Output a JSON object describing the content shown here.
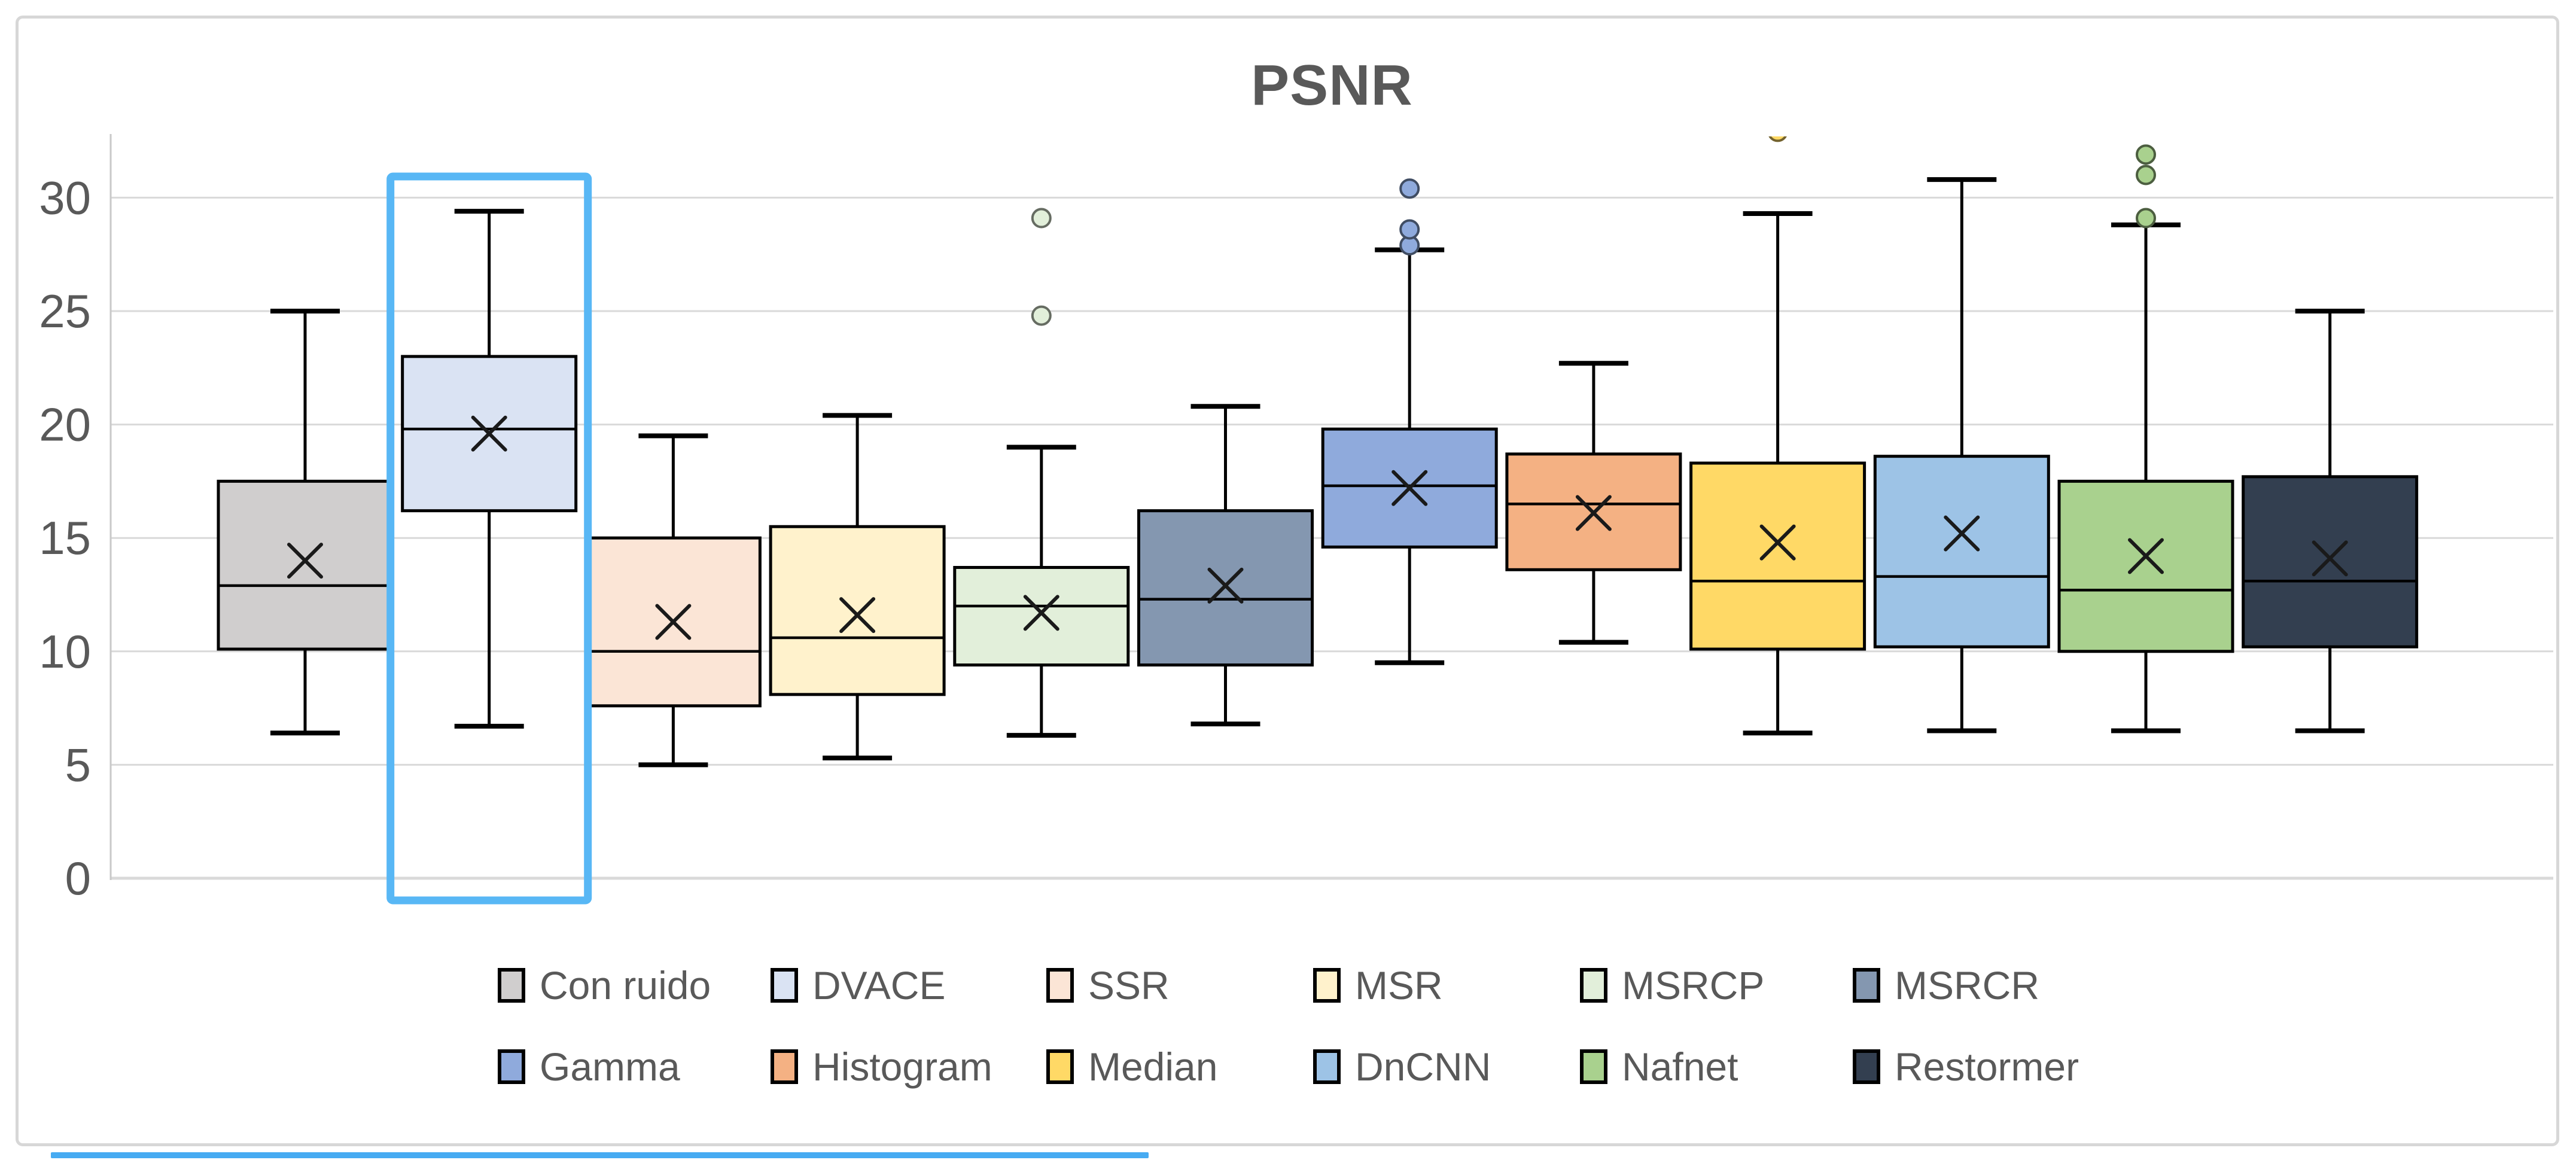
{
  "chart_data": {
    "type": "boxplot",
    "title": "PSNR",
    "y_axis": {
      "ticks": [
        0,
        5,
        10,
        15,
        20,
        25,
        30
      ],
      "min": 0,
      "max_visible": 32.7,
      "gridlines": true
    },
    "legend": {
      "position": "bottom",
      "rows": [
        [
          "Con ruido",
          "DVACE",
          "SSR",
          "MSR",
          "MSRCP",
          "MSRCR"
        ],
        [
          "Gamma",
          "Histogram",
          "Median",
          "DnCNN",
          "Nafnet",
          "Restormer"
        ]
      ]
    },
    "highlighted_series": "DVACE",
    "series": [
      {
        "name": "Con ruido",
        "color": "#D0CECE",
        "min": 6.4,
        "q1": 10.1,
        "median": 12.9,
        "mean": 14.0,
        "q3": 17.5,
        "max": 25.0,
        "outliers": [],
        "highlighted": false
      },
      {
        "name": "DVACE",
        "color": "#DAE3F3",
        "min": 6.7,
        "q1": 16.2,
        "median": 19.8,
        "mean": 19.6,
        "q3": 23.0,
        "max": 29.4,
        "outliers": [],
        "highlighted": true
      },
      {
        "name": "SSR",
        "color": "#FBE5D6",
        "min": 5.0,
        "q1": 7.6,
        "median": 10.0,
        "mean": 11.3,
        "q3": 15.0,
        "max": 19.5,
        "outliers": [],
        "highlighted": false
      },
      {
        "name": "MSR",
        "color": "#FFF2CC",
        "min": 5.3,
        "q1": 8.1,
        "median": 10.6,
        "mean": 11.6,
        "q3": 15.5,
        "max": 20.4,
        "outliers": [],
        "highlighted": false
      },
      {
        "name": "MSRCP",
        "color": "#E2EFDA",
        "min": 6.3,
        "q1": 9.4,
        "median": 12.0,
        "mean": 11.7,
        "q3": 13.7,
        "max": 19.0,
        "outliers": [
          24.8,
          29.1
        ],
        "highlighted": false
      },
      {
        "name": "MSRCR",
        "color": "#8497B0",
        "min": 6.8,
        "q1": 9.4,
        "median": 12.3,
        "mean": 12.9,
        "q3": 16.2,
        "max": 20.8,
        "outliers": [],
        "highlighted": false
      },
      {
        "name": "Gamma",
        "color": "#8FAADC",
        "min": 9.5,
        "q1": 14.6,
        "median": 17.3,
        "mean": 17.2,
        "q3": 19.8,
        "max": 27.7,
        "outliers": [
          27.9,
          28.6,
          30.4
        ],
        "highlighted": false
      },
      {
        "name": "Histogram",
        "color": "#F4B183",
        "min": 10.4,
        "q1": 13.6,
        "median": 16.5,
        "mean": 16.1,
        "q3": 18.7,
        "max": 22.7,
        "outliers": [],
        "highlighted": false
      },
      {
        "name": "Median",
        "color": "#FFD966",
        "min": 6.4,
        "q1": 10.1,
        "median": 13.1,
        "mean": 14.8,
        "q3": 18.3,
        "max": 29.3,
        "outliers": [
          32.9
        ],
        "highlighted": false
      },
      {
        "name": "DnCNN",
        "color": "#9DC3E6",
        "min": 6.5,
        "q1": 10.2,
        "median": 13.3,
        "mean": 15.2,
        "q3": 18.6,
        "max": 30.8,
        "outliers": [],
        "highlighted": false
      },
      {
        "name": "Nafnet",
        "color": "#A9D18E",
        "min": 6.5,
        "q1": 10.0,
        "median": 12.7,
        "mean": 14.2,
        "q3": 17.5,
        "max": 28.8,
        "outliers": [
          29.1,
          31.0,
          31.9
        ],
        "highlighted": false
      },
      {
        "name": "Restormer",
        "color": "#333F50",
        "min": 6.5,
        "q1": 10.2,
        "median": 13.1,
        "mean": 14.1,
        "q3": 17.7,
        "max": 25.0,
        "outliers": [],
        "highlighted": false
      }
    ]
  },
  "styles": {
    "title_color": "#595959",
    "axis_text_color": "#595959",
    "gridline_color": "#D9D9D9",
    "axis_line_color": "#C9C9C9",
    "box_stroke_color": "#000000",
    "mean_marker_color": "#1A1A1A",
    "highlight_color": "#58B7F5",
    "frame_border_color": "#D7D7D7",
    "bottom_accent_color": "#47ABF2"
  }
}
